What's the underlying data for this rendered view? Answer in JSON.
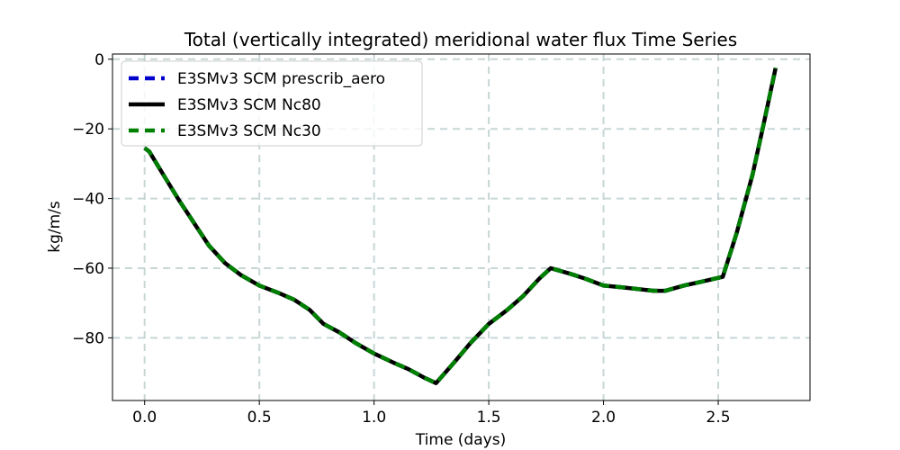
{
  "chart_data": {
    "type": "line",
    "title": "Total (vertically integrated) meridional water flux Time Series",
    "xlabel": "Time (days)",
    "ylabel": "kg/m/s",
    "xlim": [
      -0.14,
      2.9
    ],
    "ylim": [
      -98,
      1.5
    ],
    "xticks": [
      0.0,
      0.5,
      1.0,
      1.5,
      2.0,
      2.5
    ],
    "xtick_labels": [
      "0.0",
      "0.5",
      "1.0",
      "1.5",
      "2.0",
      "2.5"
    ],
    "yticks": [
      0,
      -20,
      -40,
      -60,
      -80
    ],
    "ytick_labels": [
      "0",
      "−20",
      "−40",
      "−60",
      "−80"
    ],
    "grid": true,
    "legend_position": "upper-left",
    "x": [
      0.0,
      0.02,
      0.08,
      0.15,
      0.22,
      0.28,
      0.35,
      0.42,
      0.5,
      0.58,
      0.65,
      0.72,
      0.78,
      0.85,
      0.92,
      1.0,
      1.08,
      1.15,
      1.22,
      1.27,
      1.35,
      1.42,
      1.5,
      1.58,
      1.65,
      1.72,
      1.77,
      1.85,
      1.92,
      2.0,
      2.08,
      2.15,
      2.22,
      2.27,
      2.35,
      2.42,
      2.52,
      2.58,
      2.65,
      2.7,
      2.75
    ],
    "series": [
      {
        "name": "E3SMv3 SCM prescrib_aero",
        "color": "#0000cc",
        "style": "dashed",
        "values": [
          -25.5,
          -26.5,
          -33.0,
          -40.5,
          -47.5,
          -53.5,
          -58.5,
          -62.0,
          -65.0,
          -67.0,
          -69.0,
          -72.0,
          -76.0,
          -78.5,
          -81.5,
          -84.5,
          -87.0,
          -89.0,
          -91.5,
          -93.0,
          -87.0,
          -81.5,
          -76.0,
          -72.0,
          -68.0,
          -63.0,
          -60.0,
          -61.5,
          -63.0,
          -65.0,
          -65.5,
          -66.0,
          -66.5,
          -66.5,
          -65.0,
          -64.0,
          -62.5,
          -50.0,
          -33.0,
          -18.0,
          -2.5
        ]
      },
      {
        "name": "E3SMv3 SCM Nc80",
        "color": "#000000",
        "style": "solid",
        "values": [
          -25.5,
          -26.5,
          -33.0,
          -40.5,
          -47.5,
          -53.5,
          -58.5,
          -62.0,
          -65.0,
          -67.0,
          -69.0,
          -72.0,
          -76.0,
          -78.5,
          -81.5,
          -84.5,
          -87.0,
          -89.0,
          -91.5,
          -93.0,
          -87.0,
          -81.5,
          -76.0,
          -72.0,
          -68.0,
          -63.0,
          -60.0,
          -61.5,
          -63.0,
          -65.0,
          -65.5,
          -66.0,
          -66.5,
          -66.5,
          -65.0,
          -64.0,
          -62.5,
          -50.0,
          -33.0,
          -18.0,
          -2.5
        ]
      },
      {
        "name": "E3SMv3 SCM Nc30",
        "color": "#008000",
        "style": "dashed",
        "values": [
          -25.5,
          -26.5,
          -33.0,
          -40.5,
          -47.5,
          -53.5,
          -58.5,
          -62.0,
          -65.0,
          -67.0,
          -69.0,
          -72.0,
          -76.0,
          -78.5,
          -81.5,
          -84.5,
          -87.0,
          -89.0,
          -91.5,
          -93.0,
          -87.0,
          -81.5,
          -76.0,
          -72.0,
          -68.0,
          -63.0,
          -60.0,
          -61.5,
          -63.0,
          -65.0,
          -65.5,
          -66.0,
          -66.5,
          -66.5,
          -65.0,
          -64.0,
          -62.5,
          -50.0,
          -33.0,
          -18.0,
          -2.5
        ]
      }
    ]
  }
}
